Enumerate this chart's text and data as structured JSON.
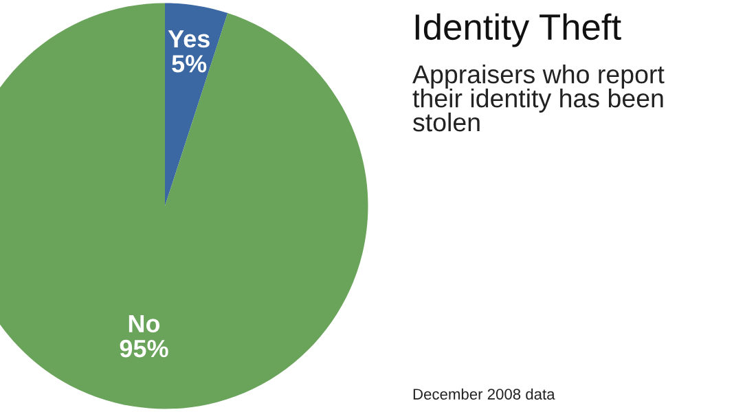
{
  "chart_data": {
    "type": "pie",
    "title": "Identity Theft",
    "subtitle": "Appraisers who report\ntheir identity has been\nstolen",
    "categories": [
      "Yes",
      "No"
    ],
    "values": [
      5,
      95
    ],
    "colors": [
      "#3b68a3",
      "#6aa35a"
    ],
    "value_labels": [
      "5%",
      "95%"
    ],
    "annotations": [
      "December 2008 data"
    ],
    "legend": false
  }
}
